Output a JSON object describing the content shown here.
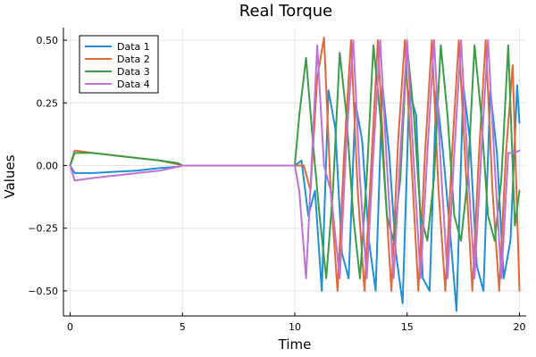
{
  "chart_data": {
    "type": "line",
    "title": "Real Torque",
    "xlabel": "Time",
    "ylabel": "Values",
    "xlim": [
      -0.3,
      20.3
    ],
    "ylim": [
      -0.6,
      0.55
    ],
    "xticks": [
      0,
      5,
      10,
      15,
      20
    ],
    "xtick_labels": [
      "0",
      "5",
      "10",
      "15",
      "20"
    ],
    "yticks": [
      -0.5,
      -0.25,
      0,
      0.25,
      0.5
    ],
    "ytick_labels": [
      "−0.50",
      "−0.25",
      "0.00",
      "0.25",
      "0.50"
    ],
    "grid": true,
    "legend_position": "top-left",
    "series": [
      {
        "name": "Data 1",
        "color": "#1f8fd6",
        "x": [
          0,
          0.2,
          1,
          2,
          3,
          4,
          4.8,
          5,
          10,
          10.3,
          10.6,
          10.9,
          11.2,
          11.5,
          11.8,
          12.1,
          12.4,
          12.7,
          13.0,
          13.3,
          13.6,
          13.9,
          14.2,
          14.5,
          14.8,
          15.1,
          15.4,
          15.7,
          16.0,
          16.3,
          16.6,
          16.9,
          17.2,
          17.5,
          17.8,
          18.1,
          18.4,
          18.7,
          19.0,
          19.3,
          19.6,
          19.9,
          20.0
        ],
        "values": [
          0,
          -0.03,
          -0.03,
          -0.025,
          -0.02,
          -0.01,
          -0.005,
          0,
          0,
          0.02,
          -0.2,
          -0.1,
          -0.5,
          0.3,
          0.15,
          -0.35,
          -0.45,
          0.25,
          0.1,
          -0.3,
          -0.5,
          0.32,
          0.05,
          -0.35,
          -0.55,
          0.3,
          0.2,
          -0.45,
          -0.5,
          0.3,
          0.05,
          -0.25,
          -0.58,
          0.32,
          0.1,
          -0.4,
          -0.5,
          0.3,
          0.05,
          -0.45,
          -0.3,
          0.32,
          0.17
        ]
      },
      {
        "name": "Data 2",
        "color": "#e0693a",
        "x": [
          0,
          0.2,
          1,
          2,
          3,
          4,
          4.8,
          5,
          10,
          10.4,
          10.7,
          11.0,
          11.3,
          11.6,
          11.9,
          12.2,
          12.5,
          12.8,
          13.1,
          13.4,
          13.7,
          14.0,
          14.3,
          14.6,
          14.9,
          15.2,
          15.5,
          15.8,
          16.1,
          16.4,
          16.7,
          17.0,
          17.3,
          17.6,
          17.9,
          18.2,
          18.5,
          18.8,
          19.1,
          19.4,
          19.7,
          20.0
        ],
        "values": [
          0,
          0.06,
          0.05,
          0.04,
          0.03,
          0.02,
          0.005,
          0,
          0,
          0.0,
          -0.1,
          0.35,
          0.51,
          -0.1,
          -0.5,
          0.05,
          0.5,
          -0.1,
          -0.5,
          0.0,
          0.5,
          -0.05,
          -0.5,
          0.1,
          0.5,
          0.0,
          -0.5,
          0.05,
          0.5,
          -0.1,
          -0.5,
          0.05,
          0.5,
          0.0,
          -0.5,
          0.05,
          0.5,
          -0.1,
          -0.5,
          0.05,
          0.4,
          -0.5
        ]
      },
      {
        "name": "Data 3",
        "color": "#3a9d47",
        "x": [
          0,
          0.2,
          1,
          2,
          3,
          4,
          4.8,
          5,
          10,
          10.2,
          10.5,
          10.8,
          11.1,
          11.4,
          11.7,
          12.0,
          12.3,
          12.6,
          12.9,
          13.2,
          13.5,
          13.8,
          14.1,
          14.4,
          14.7,
          15.0,
          15.3,
          15.6,
          15.9,
          16.2,
          16.5,
          16.8,
          17.1,
          17.4,
          17.7,
          18.0,
          18.3,
          18.6,
          18.9,
          19.2,
          19.5,
          19.8,
          20.0
        ],
        "values": [
          0,
          0.05,
          0.05,
          0.04,
          0.03,
          0.02,
          0.01,
          0,
          0,
          0.2,
          0.43,
          0.1,
          -0.2,
          -0.45,
          -0.1,
          0.45,
          0.2,
          -0.2,
          -0.45,
          -0.05,
          0.48,
          0.2,
          -0.2,
          -0.3,
          -0.05,
          0.48,
          0.2,
          -0.2,
          -0.3,
          -0.05,
          0.48,
          0.2,
          -0.2,
          -0.3,
          -0.05,
          0.48,
          0.2,
          -0.2,
          -0.3,
          -0.05,
          0.48,
          -0.24,
          -0.1
        ]
      },
      {
        "name": "Data 4",
        "color": "#c071d6",
        "x": [
          0,
          0.2,
          1,
          2,
          3,
          4,
          4.8,
          5,
          10,
          10.2,
          10.5,
          10.8,
          11.0,
          11.3,
          11.6,
          12.0,
          12.3,
          12.6,
          12.9,
          13.2,
          13.5,
          13.8,
          14.1,
          14.4,
          14.7,
          15.0,
          15.3,
          15.6,
          15.9,
          16.2,
          16.5,
          16.8,
          17.1,
          17.4,
          17.7,
          18.0,
          18.3,
          18.6,
          18.9,
          19.2,
          19.5,
          19.8,
          20.0
        ],
        "values": [
          0,
          -0.06,
          -0.05,
          -0.04,
          -0.03,
          -0.02,
          -0.005,
          0,
          0,
          -0.1,
          -0.45,
          0.1,
          0.48,
          0.0,
          -0.1,
          -0.45,
          0.1,
          0.5,
          -0.05,
          -0.45,
          0.05,
          0.5,
          0.0,
          -0.45,
          0.05,
          0.5,
          0.0,
          -0.45,
          0.05,
          0.5,
          0.0,
          -0.45,
          0.05,
          0.5,
          0.0,
          -0.45,
          0.05,
          0.5,
          0.0,
          -0.45,
          0.05,
          0.05,
          0.06
        ]
      }
    ]
  }
}
